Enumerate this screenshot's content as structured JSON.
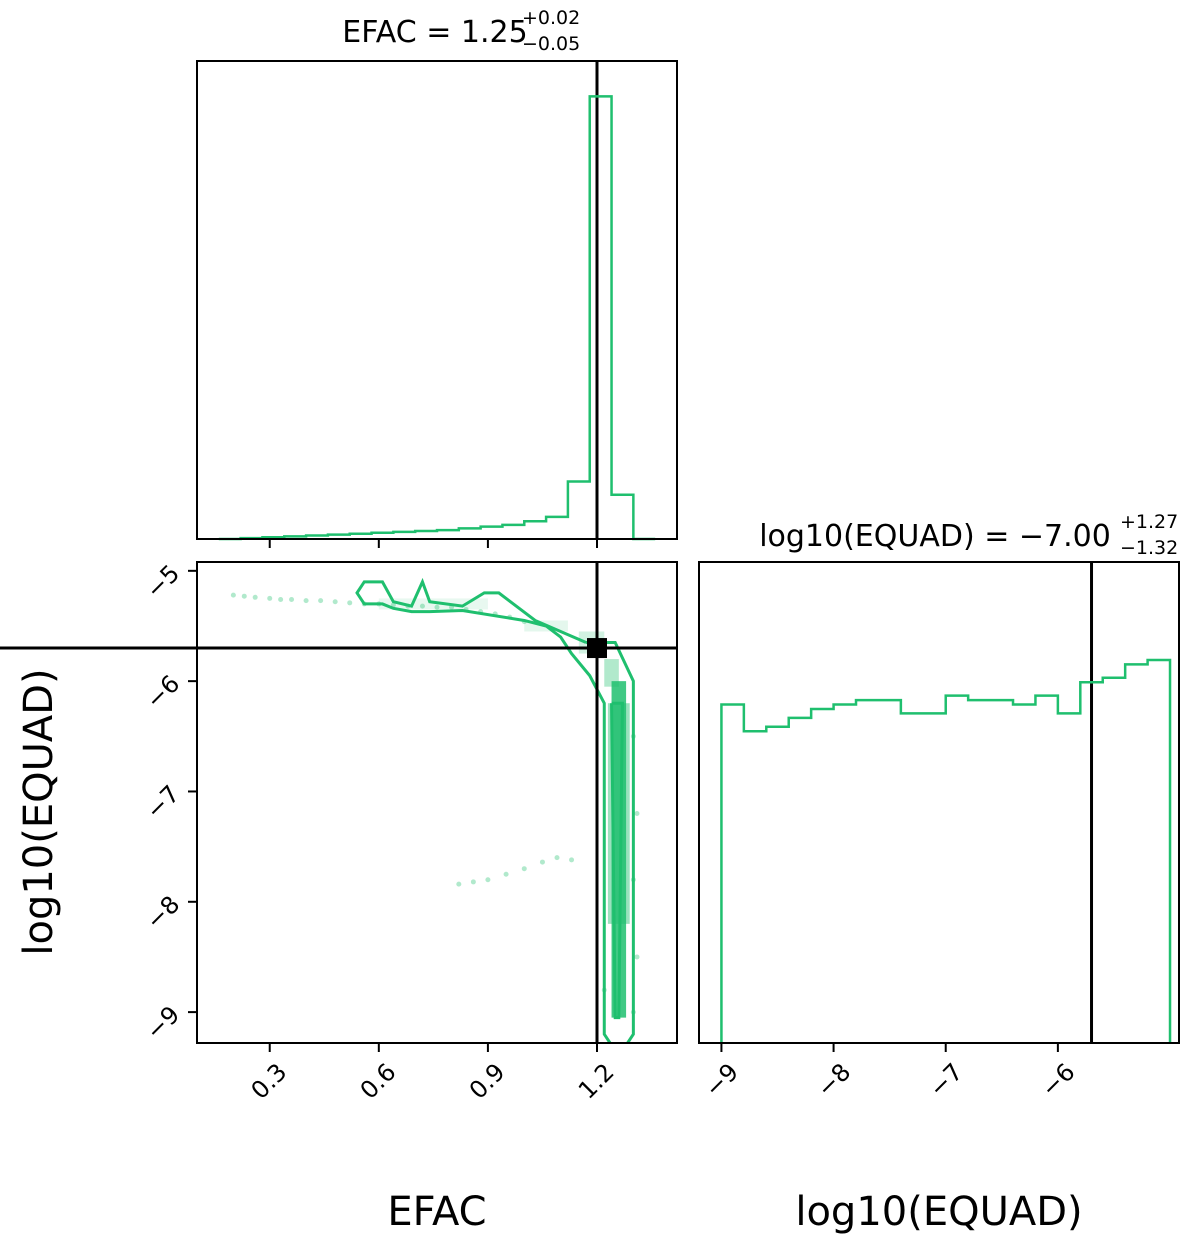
{
  "chart_data": {
    "type": "corner",
    "color": "#1fbf6e",
    "truth_color": "#000000",
    "parameters": [
      "EFAC",
      "log10(EQUAD)"
    ],
    "truths": {
      "EFAC": 1.2,
      "log10(EQUAD)": -5.7
    },
    "panels": [
      {
        "id": "hist-efac",
        "type": "histogram",
        "title": {
          "prefix": "EFAC = ",
          "value": "1.25",
          "upper": "+0.02",
          "lower": "−0.05"
        },
        "xlim": [
          0.1,
          1.42
        ],
        "ylim": [
          0,
          1.08
        ],
        "bin_edges": [
          0.16,
          0.22,
          0.28,
          0.34,
          0.4,
          0.46,
          0.52,
          0.58,
          0.64,
          0.7,
          0.76,
          0.82,
          0.88,
          0.94,
          1.0,
          1.06,
          1.12,
          1.18,
          1.24,
          1.3,
          1.36
        ],
        "counts": [
          0.0,
          0.002,
          0.004,
          0.006,
          0.008,
          0.01,
          0.012,
          0.014,
          0.016,
          0.018,
          0.02,
          0.024,
          0.028,
          0.032,
          0.04,
          0.05,
          0.13,
          1.0,
          0.1,
          0.0
        ],
        "truth_x": 1.2
      },
      {
        "id": "joint-efac-equad",
        "type": "2d-density",
        "xlim": [
          0.1,
          1.42
        ],
        "ylim": [
          -9.28,
          -4.92
        ],
        "xticks": [
          0.3,
          0.6,
          0.9,
          1.2
        ],
        "xtick_labels": [
          "0.3",
          "0.6",
          "0.9",
          "1.2"
        ],
        "yticks": [
          -5,
          -6,
          -7,
          -8,
          -9
        ],
        "ytick_labels": [
          "−5",
          "−6",
          "−7",
          "−8",
          "−9"
        ],
        "xlabel": "EFAC",
        "ylabel": "log10(EQUAD)",
        "truth": [
          1.2,
          -5.7
        ],
        "contour_outer": [
          [
            1.17,
            -5.65
          ],
          [
            1.03,
            -5.45
          ],
          [
            0.97,
            -5.3
          ],
          [
            0.93,
            -5.2
          ],
          [
            0.89,
            -5.2
          ],
          [
            0.83,
            -5.32
          ],
          [
            0.74,
            -5.28
          ],
          [
            0.72,
            -5.1
          ],
          [
            0.69,
            -5.32
          ],
          [
            0.64,
            -5.28
          ],
          [
            0.61,
            -5.1
          ],
          [
            0.56,
            -5.1
          ],
          [
            0.54,
            -5.2
          ],
          [
            0.56,
            -5.3
          ],
          [
            0.61,
            -5.3
          ],
          [
            0.64,
            -5.34
          ],
          [
            0.69,
            -5.37
          ],
          [
            0.74,
            -5.37
          ],
          [
            0.83,
            -5.36
          ],
          [
            1.0,
            -5.45
          ],
          [
            1.06,
            -5.5
          ],
          [
            1.1,
            -5.6
          ],
          [
            1.13,
            -5.75
          ],
          [
            1.18,
            -5.95
          ],
          [
            1.22,
            -6.2
          ],
          [
            1.22,
            -9.2
          ],
          [
            1.26,
            -9.4
          ],
          [
            1.3,
            -9.2
          ],
          [
            1.3,
            -6.0
          ],
          [
            1.25,
            -5.65
          ],
          [
            1.17,
            -5.65
          ]
        ],
        "contour_inner": [
          [
            1.24,
            -6.2
          ],
          [
            1.25,
            -9.05
          ],
          [
            1.26,
            -9.05
          ],
          [
            1.27,
            -6.2
          ],
          [
            1.24,
            -6.2
          ]
        ],
        "density_blocks": [
          [
            1.24,
            -6.0,
            1.28,
            -9.05,
            0.85
          ],
          [
            1.23,
            -6.2,
            1.29,
            -8.2,
            0.45
          ],
          [
            1.22,
            -5.8,
            1.26,
            -6.05,
            0.35
          ],
          [
            1.15,
            -5.55,
            1.22,
            -5.75,
            0.2
          ],
          [
            1.0,
            -5.45,
            1.12,
            -5.55,
            0.12
          ],
          [
            0.6,
            -5.25,
            0.9,
            -5.35,
            0.1
          ]
        ],
        "scatter": [
          [
            0.2,
            -5.22
          ],
          [
            0.23,
            -5.23
          ],
          [
            0.26,
            -5.24
          ],
          [
            0.3,
            -5.25
          ],
          [
            0.33,
            -5.26
          ],
          [
            0.36,
            -5.26
          ],
          [
            0.4,
            -5.27
          ],
          [
            0.44,
            -5.27
          ],
          [
            0.48,
            -5.28
          ],
          [
            0.52,
            -5.29
          ],
          [
            0.56,
            -5.3
          ],
          [
            0.6,
            -5.3
          ],
          [
            0.64,
            -5.31
          ],
          [
            0.68,
            -5.32
          ],
          [
            0.72,
            -5.32
          ],
          [
            0.76,
            -5.33
          ],
          [
            0.8,
            -5.33
          ],
          [
            0.84,
            -5.35
          ],
          [
            0.88,
            -5.37
          ],
          [
            0.92,
            -5.39
          ],
          [
            0.96,
            -5.42
          ],
          [
            1.0,
            -5.46
          ],
          [
            0.82,
            -7.84
          ],
          [
            0.86,
            -7.82
          ],
          [
            0.9,
            -7.8
          ],
          [
            0.95,
            -7.75
          ],
          [
            1.0,
            -7.7
          ],
          [
            1.05,
            -7.64
          ],
          [
            1.09,
            -7.6
          ],
          [
            1.13,
            -7.62
          ],
          [
            1.3,
            -6.5
          ],
          [
            1.31,
            -7.2
          ],
          [
            1.3,
            -7.8
          ],
          [
            1.31,
            -8.5
          ],
          [
            1.3,
            -9.0
          ],
          [
            1.22,
            -8.8
          ]
        ]
      },
      {
        "id": "hist-equad",
        "type": "histogram",
        "title": {
          "prefix": "log10(EQUAD) = ",
          "value": "−7.00",
          "upper": "+1.27",
          "lower": "−1.32"
        },
        "xlim": [
          -9.2,
          -4.92
        ],
        "ylim": [
          0,
          1.08
        ],
        "xticks": [
          -9,
          -8,
          -7,
          -6
        ],
        "xtick_labels": [
          "−9",
          "−8",
          "−7",
          "−6"
        ],
        "xlabel": "log10(EQUAD)",
        "bin_edges": [
          -9.0,
          -8.8,
          -8.6,
          -8.4,
          -8.2,
          -8.0,
          -7.8,
          -7.6,
          -7.4,
          -7.2,
          -7.0,
          -6.8,
          -6.6,
          -6.4,
          -6.2,
          -6.0,
          -5.8,
          -5.6,
          -5.4,
          -5.2,
          -5.0
        ],
        "counts": [
          0.76,
          0.7,
          0.71,
          0.73,
          0.75,
          0.76,
          0.77,
          0.77,
          0.74,
          0.74,
          0.78,
          0.77,
          0.77,
          0.76,
          0.78,
          0.74,
          0.81,
          0.82,
          0.85,
          0.86
        ],
        "truth_x": -5.7
      }
    ]
  }
}
